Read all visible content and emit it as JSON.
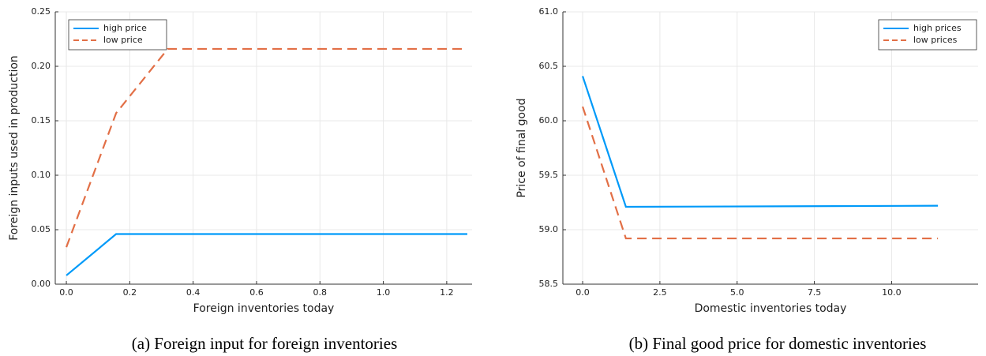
{
  "chart_data": [
    {
      "type": "line",
      "caption": "(a) Foreign input for foreign inventories",
      "xlabel": "Foreign inventories today",
      "ylabel": "Foreign inputs used in production",
      "xlim": [
        -0.035,
        1.28
      ],
      "ylim": [
        0,
        0.25
      ],
      "xticks": [
        {
          "value": 0,
          "label": "0.0"
        },
        {
          "value": 0.2,
          "label": "0.2"
        },
        {
          "value": 0.4,
          "label": "0.4"
        },
        {
          "value": 0.6,
          "label": "0.6"
        },
        {
          "value": 0.8,
          "label": "0.8"
        },
        {
          "value": 1.0,
          "label": "1.0"
        },
        {
          "value": 1.2,
          "label": "1.2"
        }
      ],
      "yticks": [
        {
          "value": 0,
          "label": "0.00"
        },
        {
          "value": 0.05,
          "label": "0.05"
        },
        {
          "value": 0.1,
          "label": "0.10"
        },
        {
          "value": 0.15,
          "label": "0.15"
        },
        {
          "value": 0.2,
          "label": "0.20"
        },
        {
          "value": 0.25,
          "label": "0.25"
        }
      ],
      "grid": true,
      "legend": "top-left",
      "series": [
        {
          "name": "high price",
          "color": "#009af9",
          "style": "solid",
          "x": [
            0,
            0.157,
            1.265
          ],
          "values": [
            0.008,
            0.046,
            0.046
          ]
        },
        {
          "name": "low price",
          "color": "#e26f46",
          "style": "dashed",
          "x": [
            0,
            0.157,
            0.32,
            1.265
          ],
          "values": [
            0.034,
            0.157,
            0.216,
            0.216
          ]
        }
      ]
    },
    {
      "type": "line",
      "caption": "(b) Final good price for domestic inventories",
      "xlabel": "Domestic inventories today",
      "ylabel": "Price of final good",
      "xlim": [
        -0.64,
        12.8
      ],
      "ylim": [
        58.5,
        61
      ],
      "xticks": [
        {
          "value": 0,
          "label": "0.0"
        },
        {
          "value": 2.5,
          "label": "2.5"
        },
        {
          "value": 5,
          "label": "5.0"
        },
        {
          "value": 7.5,
          "label": "7.5"
        },
        {
          "value": 10,
          "label": "10.0"
        }
      ],
      "yticks": [
        {
          "value": 58.5,
          "label": "58.5"
        },
        {
          "value": 59,
          "label": "59.0"
        },
        {
          "value": 59.5,
          "label": "59.5"
        },
        {
          "value": 60,
          "label": "60.0"
        },
        {
          "value": 60.5,
          "label": "60.5"
        },
        {
          "value": 61,
          "label": "61.0"
        }
      ],
      "grid": true,
      "legend": "top-right",
      "series": [
        {
          "name": "high prices",
          "color": "#009af9",
          "style": "solid",
          "x": [
            0,
            1.4,
            11.5
          ],
          "values": [
            60.41,
            59.21,
            59.22
          ]
        },
        {
          "name": "low prices",
          "color": "#e26f46",
          "style": "dashed",
          "x": [
            0,
            1.4,
            11.5
          ],
          "values": [
            60.13,
            58.92,
            58.92
          ]
        }
      ]
    }
  ]
}
